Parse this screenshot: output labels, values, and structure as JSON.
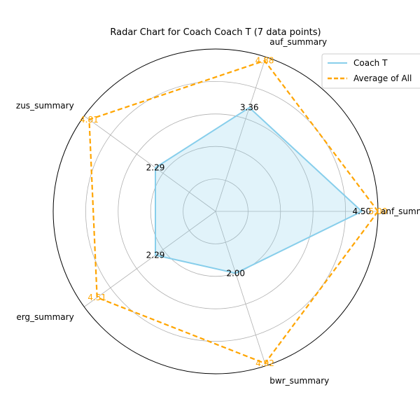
{
  "chart_data": {
    "type": "radar",
    "title": "Radar Chart for Coach Coach T (7 data points)",
    "axes": [
      "anf_summary",
      "auf_summary",
      "zus_summary",
      "erg_summary",
      "bwr_summary"
    ],
    "rmax": 5,
    "grid": true,
    "legend_position": "top-right",
    "series": [
      {
        "name": "Coach T",
        "values": [
          4.5,
          3.36,
          2.29,
          2.29,
          2.0
        ],
        "labels": [
          "4.50",
          "3.36",
          "2.29",
          "2.29",
          "2.00"
        ],
        "color": "#87ceeb",
        "style": "solid",
        "fill": true
      },
      {
        "name": "Average of All",
        "values": [
          5.0,
          4.88,
          4.81,
          4.51,
          4.92
        ],
        "labels": [
          "5.00",
          "4.88",
          "4.81",
          "4.51",
          "4.92"
        ],
        "color": "#ffa500",
        "style": "dashed",
        "fill": false
      }
    ]
  }
}
